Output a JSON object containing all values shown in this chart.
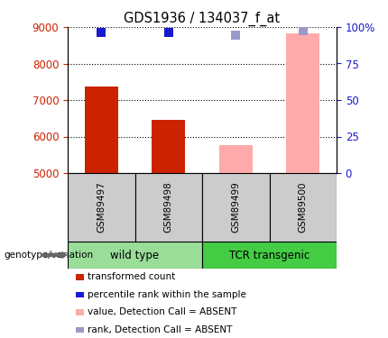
{
  "title": "GDS1936 / 134037_f_at",
  "samples": [
    "GSM89497",
    "GSM89498",
    "GSM89499",
    "GSM89500"
  ],
  "bar_values": [
    7380,
    6450,
    5760,
    8820
  ],
  "bar_colors": [
    "#cc2200",
    "#cc2200",
    "#ffaaaa",
    "#ffaaaa"
  ],
  "rank_pct": [
    96.5,
    96.5,
    94.5,
    97.5
  ],
  "dot_colors_rank": [
    "#1a1acc",
    "#1a1acc",
    "#9999cc",
    "#9999cc"
  ],
  "ylim_left": [
    5000,
    9000
  ],
  "ylim_right": [
    0,
    100
  ],
  "yticks_left": [
    5000,
    6000,
    7000,
    8000,
    9000
  ],
  "yticks_right": [
    0,
    25,
    50,
    75,
    100
  ],
  "xlabel_note": "genotype/variation",
  "bar_width": 0.5,
  "dot_size": 45,
  "background_sample_box": "#cccccc",
  "background_group_wt": "#99dd99",
  "background_group_tcr": "#44cc44",
  "legend_items": [
    {
      "label": "transformed count",
      "color": "#cc2200",
      "is_dot": false
    },
    {
      "label": "percentile rank within the sample",
      "color": "#1a1acc",
      "is_dot": true
    },
    {
      "label": "value, Detection Call = ABSENT",
      "color": "#ffaaaa",
      "is_dot": false
    },
    {
      "label": "rank, Detection Call = ABSENT",
      "color": "#9999cc",
      "is_dot": true
    }
  ]
}
